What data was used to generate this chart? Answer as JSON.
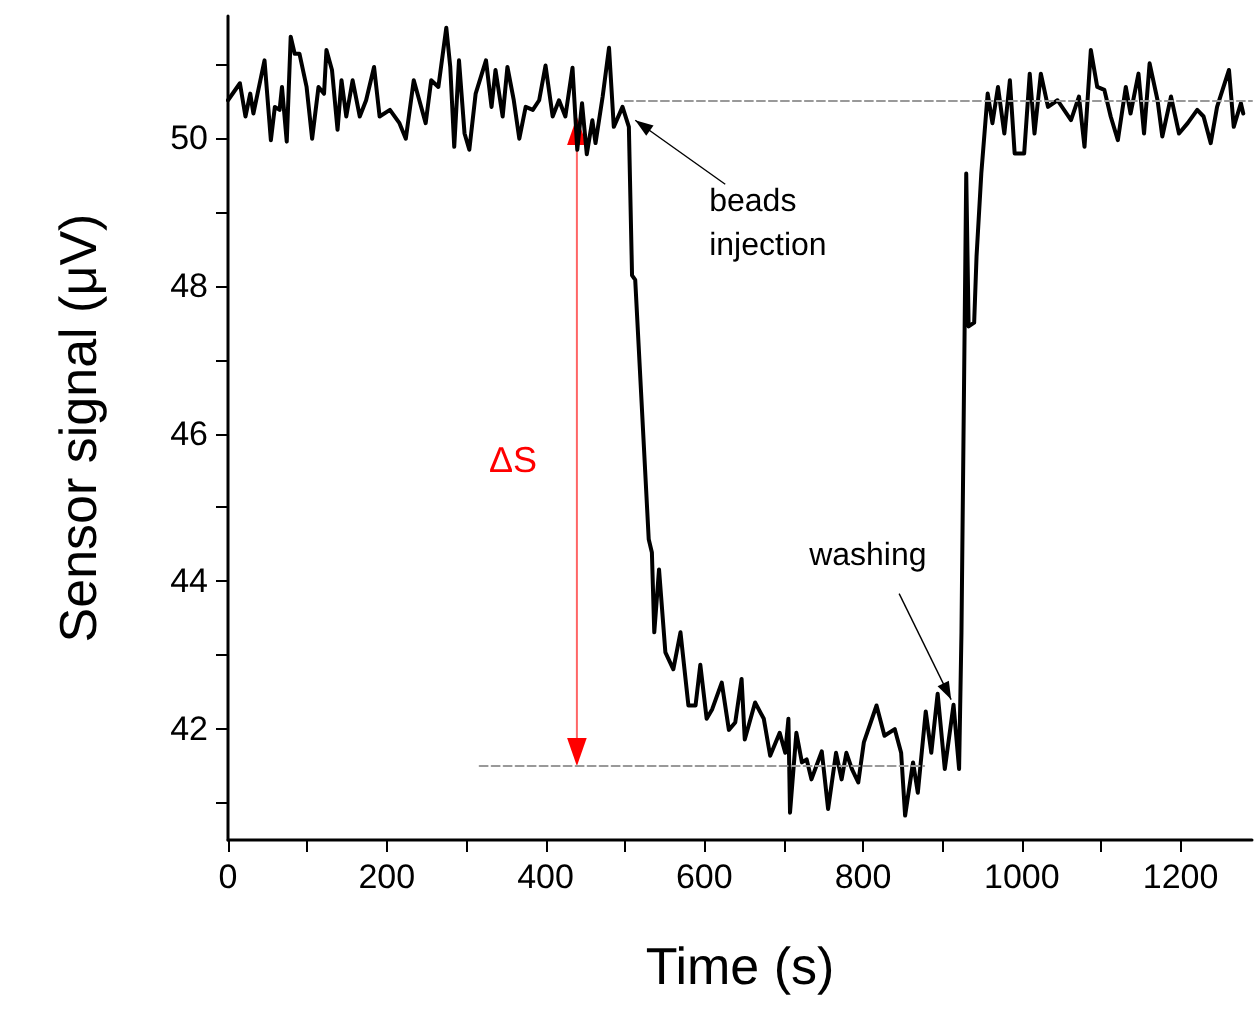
{
  "chart_data": {
    "type": "line",
    "xlabel": "Time (s)",
    "ylabel": "Sensor signal (μV)",
    "xlim": [
      0,
      1290
    ],
    "ylim": [
      40.5,
      51.65
    ],
    "xticks": [
      0,
      {
        "value": 100,
        "label": null
      },
      200,
      {
        "value": 300,
        "label": null
      },
      400,
      {
        "value": 500,
        "label": null
      },
      600,
      {
        "value": 700,
        "label": null
      },
      800,
      {
        "value": 900,
        "label": null
      },
      1000,
      {
        "value": 1100,
        "label": null
      },
      1200
    ],
    "yticks": [
      {
        "value": 41,
        "label": null
      },
      42,
      {
        "value": 43,
        "label": null
      },
      44,
      {
        "value": 45,
        "label": null
      },
      46,
      {
        "value": 47,
        "label": null
      },
      48,
      {
        "value": 49,
        "label": null
      },
      50,
      {
        "value": 51,
        "label": null
      }
    ],
    "grid": false,
    "marker": "none",
    "series": [
      {
        "color": "#000000",
        "line_style": "solid",
        "x": [
          0,
          15,
          22,
          28,
          32,
          46,
          54,
          59,
          65,
          68,
          74,
          79,
          84,
          90,
          99,
          106,
          114,
          121,
          124,
          131,
          138,
          143,
          149,
          157,
          166,
          174,
          184,
          191,
          204,
          216,
          224,
          234,
          241,
          249,
          256,
          265,
          275,
          280,
          285,
          291,
          298,
          304,
          312,
          325,
          332,
          337,
          346,
          352,
          360,
          367,
          375,
          384,
          392,
          400,
          409,
          417,
          425,
          434,
          440,
          446,
          452,
          459,
          463,
          472,
          480,
          486,
          497,
          505,
          509,
          513,
          530,
          534,
          537,
          543,
          551,
          561,
          570,
          580,
          589,
          595,
          603,
          610,
          622,
          631,
          639,
          647,
          651,
          664,
          675,
          683,
          695,
          702,
          706,
          708,
          716,
          723,
          729,
          735,
          748,
          756,
          766,
          773,
          779,
          786,
          794,
          801,
          817,
          827,
          840,
          848,
          853,
          863,
          869,
          879,
          886,
          894,
          903,
          914,
          921,
          924,
          930,
          933,
          940,
          943,
          949,
          957,
          963,
          970,
          978,
          985,
          991,
          1003,
          1010,
          1016,
          1024,
          1033,
          1045,
          1062,
          1072,
          1079,
          1087,
          1095,
          1104,
          1112,
          1121,
          1131,
          1137,
          1147,
          1154,
          1161,
          1171,
          1177,
          1188,
          1198,
          1209,
          1221,
          1229,
          1238,
          1246,
          1261,
          1267,
          1276,
          1279
        ],
        "values": [
          50.51,
          50.74,
          50.29,
          50.6,
          50.33,
          51.05,
          49.97,
          50.42,
          50.38,
          50.69,
          49.95,
          51.37,
          51.14,
          51.14,
          50.69,
          49.99,
          50.69,
          50.6,
          51.19,
          50.92,
          50.11,
          50.78,
          50.29,
          50.78,
          50.29,
          50.51,
          50.96,
          50.29,
          50.38,
          50.2,
          49.99,
          50.78,
          50.51,
          50.2,
          50.78,
          50.69,
          51.49,
          50.96,
          49.88,
          51.05,
          50.06,
          49.84,
          50.6,
          51.05,
          50.42,
          50.92,
          50.29,
          50.96,
          50.51,
          49.99,
          50.42,
          50.38,
          50.51,
          50.98,
          50.29,
          50.51,
          50.29,
          50.95,
          49.84,
          50.47,
          49.78,
          50.24,
          49.93,
          50.56,
          51.22,
          50.15,
          50.42,
          50.15,
          48.14,
          48.08,
          44.57,
          44.39,
          43.31,
          44.16,
          43.04,
          42.81,
          43.31,
          42.32,
          42.32,
          42.87,
          42.14,
          42.27,
          42.63,
          41.99,
          42.09,
          42.68,
          41.86,
          42.36,
          42.14,
          41.64,
          41.95,
          41.68,
          42.14,
          40.87,
          41.95,
          41.55,
          41.59,
          41.32,
          41.7,
          40.92,
          41.68,
          41.32,
          41.68,
          41.46,
          41.28,
          41.82,
          42.32,
          41.91,
          42.0,
          41.68,
          40.83,
          41.55,
          41.14,
          42.24,
          41.68,
          42.48,
          41.46,
          42.33,
          41.46,
          43.31,
          49.52,
          47.45,
          47.5,
          48.4,
          49.52,
          50.6,
          50.2,
          50.69,
          50.06,
          50.78,
          49.79,
          49.79,
          50.87,
          50.06,
          50.87,
          50.42,
          50.51,
          50.24,
          50.56,
          49.88,
          51.19,
          50.69,
          50.65,
          50.29,
          49.97,
          50.69,
          50.33,
          50.87,
          50.06,
          51.01,
          50.51,
          50.02,
          50.56,
          50.06,
          50.2,
          50.38,
          50.29,
          49.93,
          50.42,
          50.92,
          50.15,
          50.47,
          50.33
        ]
      },
      {
        "color": "#999999",
        "line_style": "dashed",
        "x": [
          500,
          1290
        ],
        "values": [
          50.5,
          50.5
        ]
      },
      {
        "color": "#999999",
        "line_style": "dashed",
        "x": [
          317,
          877
        ],
        "values": [
          41.5,
          41.5
        ]
      }
    ],
    "annotations": [
      {
        "text": "beads\ninjection",
        "x": 513,
        "y": 50.24
      },
      {
        "text": "washing",
        "x": 911,
        "y": 42.4
      },
      "ΔS"
    ]
  }
}
